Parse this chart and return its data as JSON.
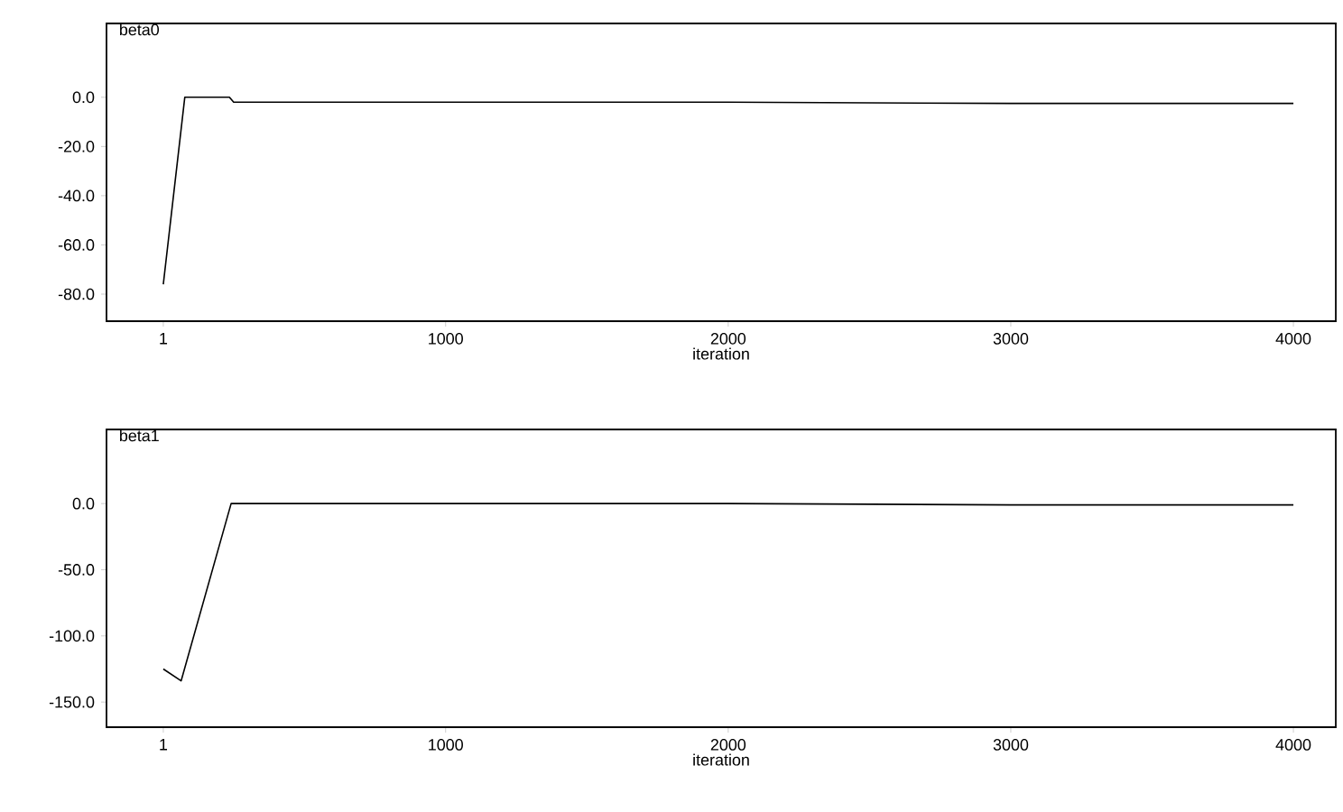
{
  "chart_data": [
    {
      "type": "line",
      "title": "beta0",
      "xlabel": "iteration",
      "xlim": [
        -200,
        4150
      ],
      "ylim": [
        -91,
        30
      ],
      "xticks": [
        1,
        1000,
        2000,
        3000,
        4000
      ],
      "yticks": [
        {
          "value": 0,
          "label": "0.0"
        },
        {
          "value": -20,
          "label": "-20.0"
        },
        {
          "value": -40,
          "label": "-40.0"
        },
        {
          "value": -60,
          "label": "-60.0"
        },
        {
          "value": -80,
          "label": "-80.0"
        }
      ],
      "grid": false,
      "marker": "none",
      "line_style": "solid",
      "series": [
        {
          "color": "#000000",
          "x": [
            1,
            77,
            235,
            250,
            1000,
            2000,
            3000,
            4000
          ],
          "values": [
            -76,
            0,
            0,
            -2,
            -2,
            -2,
            -2.5,
            -2.5
          ]
        }
      ]
    },
    {
      "type": "line",
      "title": "beta1",
      "xlabel": "iteration",
      "xlim": [
        -200,
        4150
      ],
      "ylim": [
        -169,
        56
      ],
      "xticks": [
        1,
        1000,
        2000,
        3000,
        4000
      ],
      "yticks": [
        {
          "value": 0,
          "label": "0.0"
        },
        {
          "value": -50,
          "label": "-50.0"
        },
        {
          "value": -100,
          "label": "-100.0"
        },
        {
          "value": -150,
          "label": "-150.0"
        }
      ],
      "grid": false,
      "marker": "none",
      "line_style": "solid",
      "series": [
        {
          "color": "#000000",
          "x": [
            1,
            64,
            241,
            1000,
            2000,
            3000,
            4000
          ],
          "values": [
            -125,
            -134,
            0,
            0,
            0,
            -1,
            -1
          ]
        }
      ]
    }
  ]
}
